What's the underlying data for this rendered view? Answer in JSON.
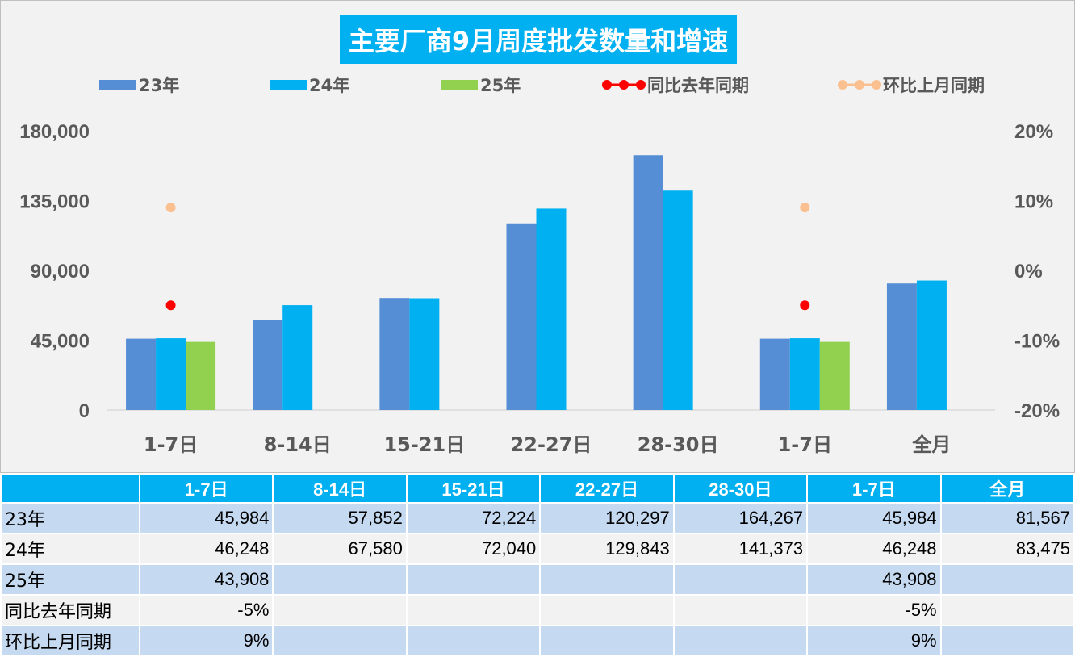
{
  "title": "主要厂商9月周度批发数量和增速",
  "legend": [
    {
      "label": "23年",
      "kind": "bar",
      "color": "#558ed5"
    },
    {
      "label": "24年",
      "kind": "bar",
      "color": "#00b0f0"
    },
    {
      "label": "25年",
      "kind": "bar",
      "color": "#92d050"
    },
    {
      "label": "同比去年同期",
      "kind": "dot",
      "color": "#ff0000"
    },
    {
      "label": "环比上月同期",
      "kind": "dot",
      "color": "#fac090"
    }
  ],
  "chart_data": {
    "type": "bar",
    "categories": [
      "1-7日",
      "8-14日",
      "15-21日",
      "22-27日",
      "28-30日",
      "1-7日",
      "全月"
    ],
    "series": [
      {
        "name": "23年",
        "axis": "left",
        "values": [
          45984,
          57852,
          72224,
          120297,
          164267,
          45984,
          81567
        ],
        "color": "#558ed5"
      },
      {
        "name": "24年",
        "axis": "left",
        "values": [
          46248,
          67580,
          72040,
          129843,
          141373,
          46248,
          83475
        ],
        "color": "#00b0f0"
      },
      {
        "name": "25年",
        "axis": "left",
        "values": [
          43908,
          null,
          null,
          null,
          null,
          43908,
          null
        ],
        "color": "#92d050"
      },
      {
        "name": "同比去年同期",
        "axis": "right",
        "type": "scatter",
        "values": [
          -0.05,
          null,
          null,
          null,
          null,
          -0.05,
          null
        ],
        "color": "#ff0000"
      },
      {
        "name": "环比上月同期",
        "axis": "right",
        "type": "scatter",
        "values": [
          0.09,
          null,
          null,
          null,
          null,
          0.09,
          null
        ],
        "color": "#fac090"
      }
    ],
    "y_left": {
      "min": 0,
      "max": 180000,
      "ticks": [
        "0",
        "45,000",
        "90,000",
        "135,000",
        "180,000"
      ]
    },
    "y_right": {
      "min": -0.2,
      "max": 0.2,
      "ticks": [
        "-20%",
        "-10%",
        "0%",
        "10%",
        "20%"
      ]
    },
    "legend_position": "top"
  },
  "table": {
    "headers": [
      "",
      "1-7日",
      "8-14日",
      "15-21日",
      "22-27日",
      "28-30日",
      "1-7日",
      "全月"
    ],
    "rows": [
      {
        "label": "23年",
        "cells": [
          "45,984",
          "57,852",
          "72,224",
          "120,297",
          "164,267",
          "45,984",
          "81,567"
        ]
      },
      {
        "label": "24年",
        "cells": [
          "46,248",
          "67,580",
          "72,040",
          "129,843",
          "141,373",
          "46,248",
          "83,475"
        ]
      },
      {
        "label": "25年",
        "cells": [
          "43,908",
          "",
          "",
          "",
          "",
          "43,908",
          ""
        ]
      },
      {
        "label": "同比去年同期",
        "cells": [
          "-5%",
          "",
          "",
          "",
          "",
          "-5%",
          ""
        ]
      },
      {
        "label": "环比上月同期",
        "cells": [
          "9%",
          "",
          "",
          "",
          "",
          "9%",
          ""
        ]
      }
    ]
  }
}
